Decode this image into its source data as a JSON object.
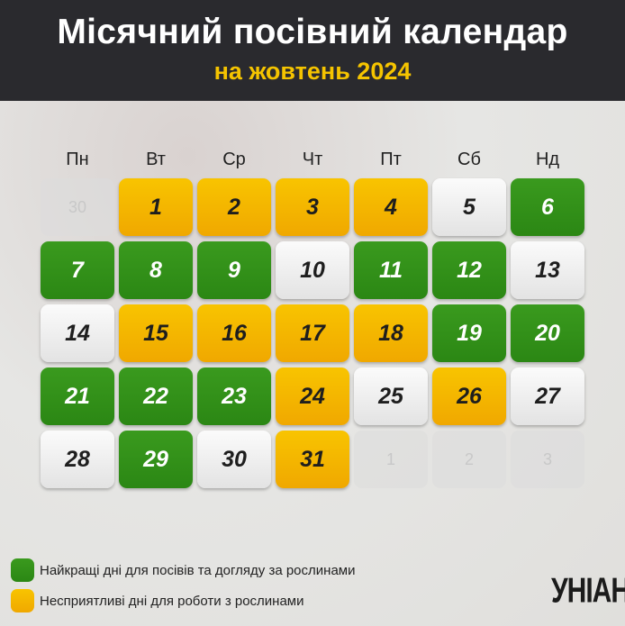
{
  "header": {
    "title": "Місячний посівний календар",
    "subtitle": "на жовтень 2024"
  },
  "weekdays": [
    "Пн",
    "Вт",
    "Ср",
    "Чт",
    "Пт",
    "Сб",
    "Нд"
  ],
  "colors": {
    "best": "#2f8d17",
    "unfavorable": "#f4b500",
    "neutral": "#f0f0f0",
    "other_month": "#dcdcdc"
  },
  "days": [
    [
      {
        "d": "30",
        "t": "m"
      },
      {
        "d": "1",
        "t": "y"
      },
      {
        "d": "2",
        "t": "y"
      },
      {
        "d": "3",
        "t": "y"
      },
      {
        "d": "4",
        "t": "y"
      },
      {
        "d": "5",
        "t": "w"
      },
      {
        "d": "6",
        "t": "g"
      }
    ],
    [
      {
        "d": "7",
        "t": "g"
      },
      {
        "d": "8",
        "t": "g"
      },
      {
        "d": "9",
        "t": "g"
      },
      {
        "d": "10",
        "t": "w"
      },
      {
        "d": "11",
        "t": "g"
      },
      {
        "d": "12",
        "t": "g"
      },
      {
        "d": "13",
        "t": "w"
      }
    ],
    [
      {
        "d": "14",
        "t": "w"
      },
      {
        "d": "15",
        "t": "y"
      },
      {
        "d": "16",
        "t": "y"
      },
      {
        "d": "17",
        "t": "y"
      },
      {
        "d": "18",
        "t": "y"
      },
      {
        "d": "19",
        "t": "g"
      },
      {
        "d": "20",
        "t": "g"
      }
    ],
    [
      {
        "d": "21",
        "t": "g"
      },
      {
        "d": "22",
        "t": "g"
      },
      {
        "d": "23",
        "t": "g"
      },
      {
        "d": "24",
        "t": "y"
      },
      {
        "d": "25",
        "t": "w"
      },
      {
        "d": "26",
        "t": "y"
      },
      {
        "d": "27",
        "t": "w"
      }
    ],
    [
      {
        "d": "28",
        "t": "w"
      },
      {
        "d": "29",
        "t": "g"
      },
      {
        "d": "30",
        "t": "w"
      },
      {
        "d": "31",
        "t": "y"
      },
      {
        "d": "1",
        "t": "m"
      },
      {
        "d": "2",
        "t": "m"
      },
      {
        "d": "3",
        "t": "m"
      }
    ]
  ],
  "legend": {
    "best": "Найкращі дні для посівів та догляду за рослинами",
    "unfavorable": "Несприятливі дні для роботи з рослинами"
  },
  "logo": "УНІАН"
}
